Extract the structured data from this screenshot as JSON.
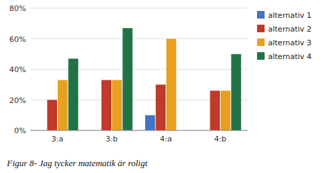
{
  "chart_data": {
    "type": "bar",
    "caption": "Figur 8- Jag tycker matematik är roligt",
    "categories": [
      "3:a",
      "3:b",
      "4:a",
      "4:b"
    ],
    "series": [
      {
        "name": "alternativ 1",
        "color": "#4472C4",
        "values": [
          0,
          0,
          0.1,
          0
        ]
      },
      {
        "name": "alternativ 2",
        "color": "#C0392B",
        "values": [
          0.2,
          0.33,
          0.3,
          0.26
        ]
      },
      {
        "name": "alternativ 3",
        "color": "#E8A020",
        "values": [
          0.33,
          0.33,
          0.6,
          0.26
        ]
      },
      {
        "name": "alternativ 4",
        "color": "#217346",
        "values": [
          0.47,
          0.67,
          0,
          0.5
        ]
      }
    ],
    "ylim": [
      0,
      0.8
    ],
    "yticks": [
      {
        "value": 0,
        "label": "0%"
      },
      {
        "value": 0.2,
        "label": "20%"
      },
      {
        "value": 0.4,
        "label": "40%"
      },
      {
        "value": 0.6,
        "label": "60%"
      },
      {
        "value": 0.8,
        "label": "80%"
      }
    ],
    "grid": true,
    "legend": "right"
  }
}
